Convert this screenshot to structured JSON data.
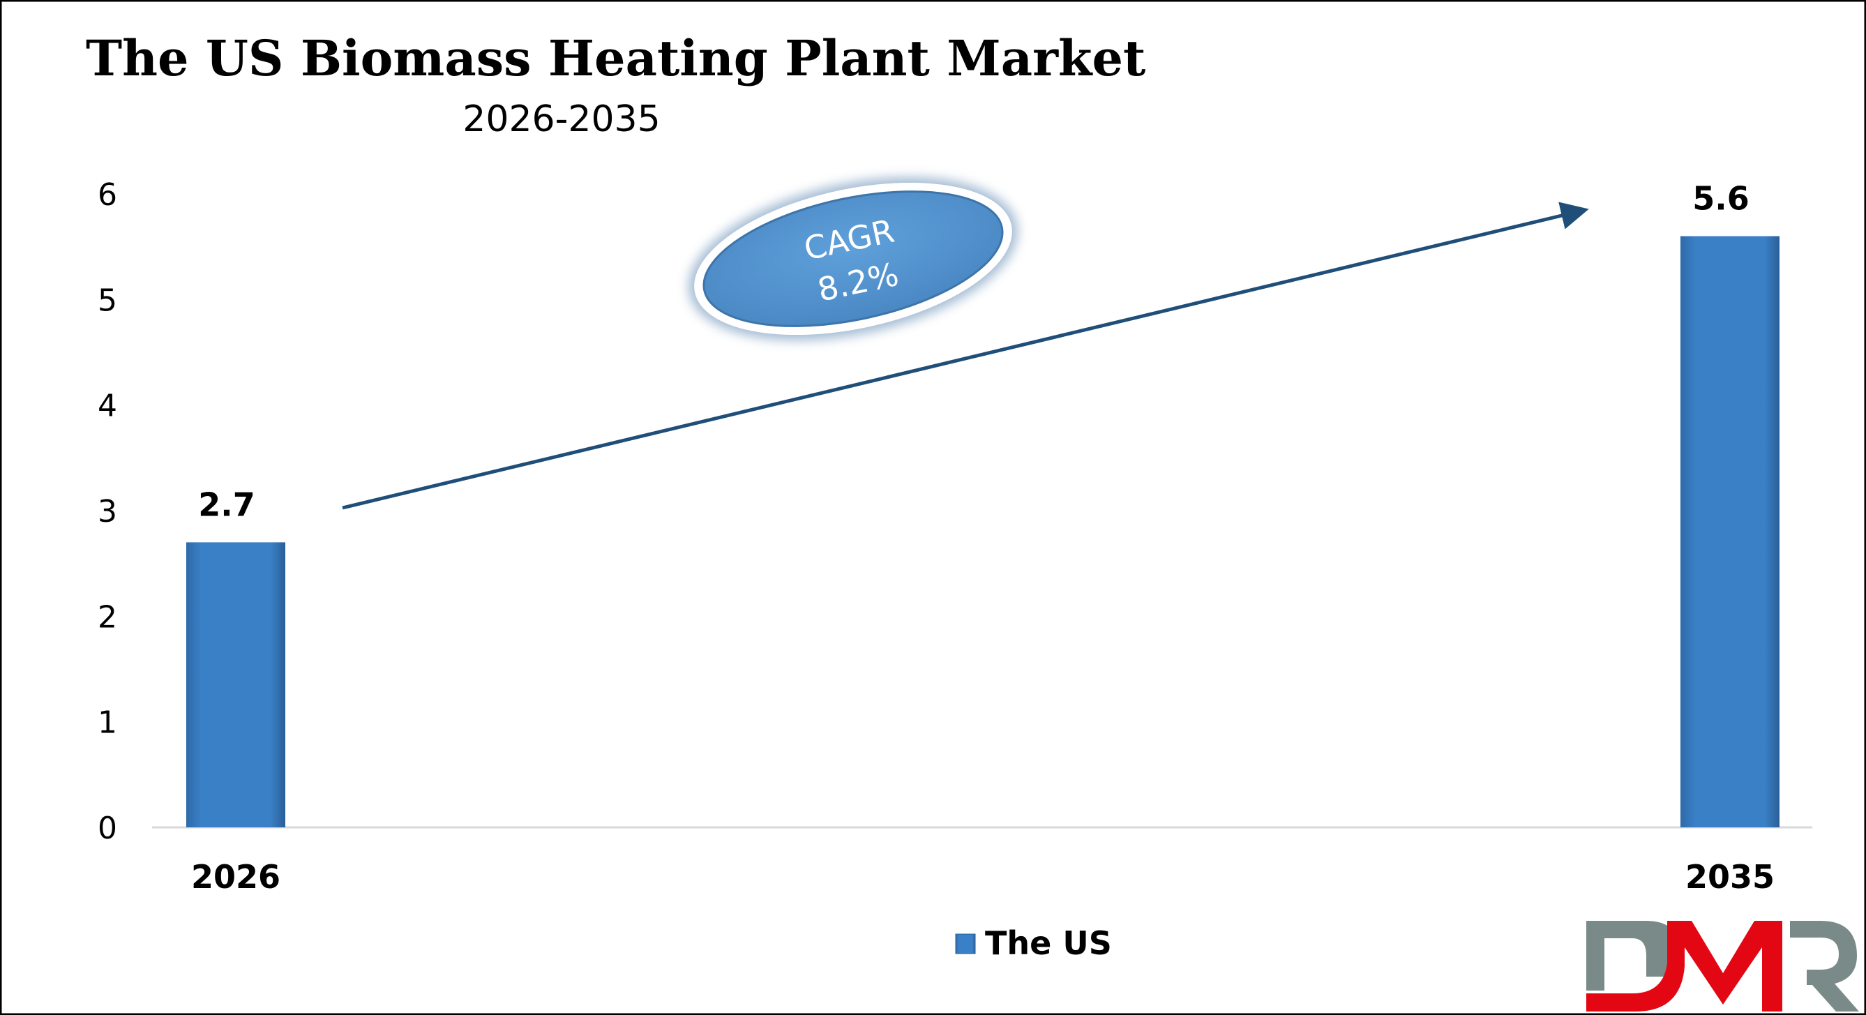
{
  "chart_data": {
    "type": "bar",
    "title": "The US Biomass Heating Plant Market",
    "subtitle": "2026-2035",
    "categories": [
      "2026",
      "2035"
    ],
    "series": [
      {
        "name": "The US",
        "values": [
          2.7,
          5.6
        ]
      }
    ],
    "data_labels": [
      "2.7",
      "5.6"
    ],
    "ylim": [
      0,
      6
    ],
    "yticks": [
      "0",
      "1",
      "2",
      "3",
      "4",
      "5",
      "6"
    ],
    "grid": false,
    "legend": "bottom-center",
    "annotation": {
      "line1": "CAGR",
      "line2": "8.2%"
    },
    "colors": {
      "bar": "#3a7fc4",
      "arrow": "#1f4e79",
      "ellipse": "#5b9bd5"
    }
  },
  "logo": {
    "text": "DMR",
    "colors": {
      "gray": "#7a8a88",
      "red": "#e30613"
    }
  }
}
